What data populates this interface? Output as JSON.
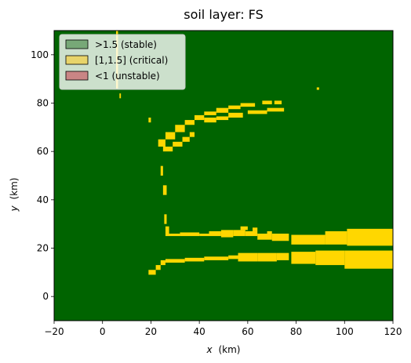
{
  "chart_data": {
    "type": "heatmap",
    "title": "soil layer: FS",
    "xlabel_var": "x",
    "xlabel_unit": "(km)",
    "ylabel_var": "y",
    "ylabel_unit": "(km)",
    "xlim": [
      -20,
      120
    ],
    "ylim": [
      -10,
      110
    ],
    "xticks": [
      -20,
      0,
      20,
      40,
      60,
      80,
      100,
      120
    ],
    "yticks": [
      0,
      20,
      40,
      60,
      80,
      100
    ],
    "legend_position": "upper-left",
    "background_class": "stable",
    "classes": [
      {
        "key": "stable",
        "label": ">1.5 (stable)",
        "color": "#006400",
        "legend_color": "#77a877"
      },
      {
        "key": "critical",
        "label": "[1,1.5] (critical)",
        "color": "#ffd700",
        "legend_color": "#e8d46a"
      },
      {
        "key": "unstable",
        "label": "<1 (unstable)",
        "color": "#c00000",
        "legend_color": "#c98585"
      }
    ],
    "critical_regions": [
      {
        "id": "top-left-strip",
        "x": [
          5.6,
          6.4
        ],
        "y": [
          86,
          110
        ]
      },
      {
        "id": "top-left-dot-1",
        "x": [
          7.0,
          7.6
        ],
        "y": [
          82,
          84
        ]
      },
      {
        "id": "top-right-dot",
        "x": [
          88.5,
          89.5
        ],
        "y": [
          85.5,
          86.5
        ]
      },
      {
        "id": "arc-seg-1",
        "x": [
          23,
          26
        ],
        "y": [
          62,
          65
        ]
      },
      {
        "id": "arc-seg-2",
        "x": [
          26,
          30
        ],
        "y": [
          65,
          68
        ]
      },
      {
        "id": "arc-seg-3",
        "x": [
          30,
          34
        ],
        "y": [
          68,
          71
        ]
      },
      {
        "id": "arc-seg-4",
        "x": [
          34,
          38
        ],
        "y": [
          71,
          73
        ]
      },
      {
        "id": "arc-seg-5",
        "x": [
          38,
          42
        ],
        "y": [
          73,
          75
        ]
      },
      {
        "id": "arc-seg-6",
        "x": [
          42,
          47
        ],
        "y": [
          75,
          76.5
        ]
      },
      {
        "id": "arc-seg-7",
        "x": [
          47,
          52
        ],
        "y": [
          76,
          78
        ]
      },
      {
        "id": "arc-seg-8",
        "x": [
          52,
          57
        ],
        "y": [
          77.5,
          79
        ]
      },
      {
        "id": "arc-seg-9",
        "x": [
          57,
          63
        ],
        "y": [
          78.5,
          80
        ]
      },
      {
        "id": "arc-seg-10",
        "x": [
          66,
          70
        ],
        "y": [
          79.5,
          81
        ]
      },
      {
        "id": "arc-seg-11",
        "x": [
          71,
          74
        ],
        "y": [
          79.5,
          81
        ]
      },
      {
        "id": "arc-inner-1",
        "x": [
          25,
          29
        ],
        "y": [
          60,
          62
        ]
      },
      {
        "id": "arc-inner-2",
        "x": [
          29,
          33
        ],
        "y": [
          62,
          64
        ]
      },
      {
        "id": "arc-inner-3",
        "x": [
          33,
          36
        ],
        "y": [
          64,
          66
        ]
      },
      {
        "id": "arc-inner-4",
        "x": [
          36,
          38
        ],
        "y": [
          66,
          68
        ]
      },
      {
        "id": "arc-inner-5",
        "x": [
          42,
          47
        ],
        "y": [
          72,
          74
        ]
      },
      {
        "id": "arc-inner-6",
        "x": [
          47,
          52
        ],
        "y": [
          73,
          74.5
        ]
      },
      {
        "id": "arc-inner-7",
        "x": [
          52,
          58
        ],
        "y": [
          74,
          76
        ]
      },
      {
        "id": "arc-inner-8",
        "x": [
          60,
          68
        ],
        "y": [
          75.5,
          77
        ]
      },
      {
        "id": "arc-inner-9",
        "x": [
          68,
          75
        ],
        "y": [
          76.5,
          78
        ]
      },
      {
        "id": "left-dot-a",
        "x": [
          19,
          20
        ],
        "y": [
          72,
          74
        ]
      },
      {
        "id": "left-dot-b",
        "x": [
          24,
          25
        ],
        "y": [
          50,
          54
        ]
      },
      {
        "id": "left-dot-c",
        "x": [
          25,
          26.5
        ],
        "y": [
          42,
          46
        ]
      },
      {
        "id": "left-dot-d",
        "x": [
          25.5,
          26.5
        ],
        "y": [
          30,
          34
        ]
      },
      {
        "id": "left-col",
        "x": [
          26,
          27.5
        ],
        "y": [
          26,
          29
        ]
      },
      {
        "id": "upper-band-1",
        "x": [
          26,
          32
        ],
        "y": [
          25,
          26
        ]
      },
      {
        "id": "upper-band-2",
        "x": [
          32,
          40
        ],
        "y": [
          25,
          26.5
        ]
      },
      {
        "id": "upper-band-3",
        "x": [
          40,
          44
        ],
        "y": [
          25,
          26
        ]
      },
      {
        "id": "upper-band-4",
        "x": [
          44,
          49
        ],
        "y": [
          25,
          27
        ]
      },
      {
        "id": "upper-band-5",
        "x": [
          49,
          54
        ],
        "y": [
          24.5,
          27.5
        ]
      },
      {
        "id": "upper-band-6",
        "x": [
          54,
          59
        ],
        "y": [
          25,
          27.5
        ]
      },
      {
        "id": "upper-band-7",
        "x": [
          59,
          64
        ],
        "y": [
          25,
          27
        ]
      },
      {
        "id": "upper-band-8",
        "x": [
          64,
          70
        ],
        "y": [
          23.5,
          26
        ]
      },
      {
        "id": "upper-band-9",
        "x": [
          70,
          77
        ],
        "y": [
          23,
          26
        ]
      },
      {
        "id": "upper-band-10",
        "x": [
          78,
          92
        ],
        "y": [
          21.5,
          25.5
        ]
      },
      {
        "id": "upper-band-11",
        "x": [
          92,
          101
        ],
        "y": [
          21.5,
          27
        ]
      },
      {
        "id": "upper-band-12",
        "x": [
          101,
          120
        ],
        "y": [
          21,
          28
        ]
      },
      {
        "id": "upper-band-bumps-1",
        "x": [
          57,
          60
        ],
        "y": [
          27.5,
          29
        ]
      },
      {
        "id": "upper-band-bumps-2",
        "x": [
          62,
          64
        ],
        "y": [
          27,
          28.5
        ]
      },
      {
        "id": "upper-band-bumps-3",
        "x": [
          68,
          70
        ],
        "y": [
          26,
          27
        ]
      },
      {
        "id": "lower-band-1",
        "x": [
          19,
          22
        ],
        "y": [
          9,
          11
        ]
      },
      {
        "id": "lower-band-2",
        "x": [
          22,
          24
        ],
        "y": [
          11,
          13
        ]
      },
      {
        "id": "lower-band-3",
        "x": [
          24,
          26
        ],
        "y": [
          13,
          15
        ]
      },
      {
        "id": "lower-band-4",
        "x": [
          26,
          34
        ],
        "y": [
          14,
          15.5
        ]
      },
      {
        "id": "lower-band-5",
        "x": [
          34,
          42
        ],
        "y": [
          14.5,
          16
        ]
      },
      {
        "id": "lower-band-6",
        "x": [
          42,
          52
        ],
        "y": [
          15,
          16.5
        ]
      },
      {
        "id": "lower-band-7",
        "x": [
          52,
          56
        ],
        "y": [
          15.5,
          17
        ]
      },
      {
        "id": "lower-band-8",
        "x": [
          56,
          64
        ],
        "y": [
          14.5,
          18
        ]
      },
      {
        "id": "lower-band-9",
        "x": [
          64,
          72
        ],
        "y": [
          14.5,
          18
        ]
      },
      {
        "id": "lower-band-10",
        "x": [
          72,
          77
        ],
        "y": [
          15,
          18
        ]
      },
      {
        "id": "lower-band-11",
        "x": [
          78,
          88
        ],
        "y": [
          13.5,
          18.5
        ]
      },
      {
        "id": "lower-band-12",
        "x": [
          88,
          100
        ],
        "y": [
          13,
          19
        ]
      },
      {
        "id": "lower-band-13",
        "x": [
          100,
          120
        ],
        "y": [
          11.5,
          19
        ]
      }
    ],
    "unstable_regions": []
  }
}
